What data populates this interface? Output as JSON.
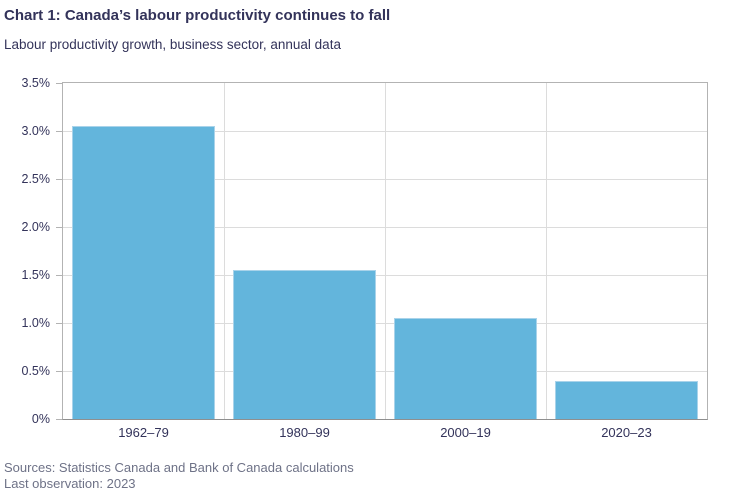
{
  "header": {
    "title": "Chart 1: Canada’s labour productivity continues to fall",
    "subtitle": "Labour productivity growth, business sector, annual data"
  },
  "chart_data": {
    "type": "bar",
    "categories": [
      "1962–79",
      "1980–99",
      "2000–19",
      "2020–23"
    ],
    "values": [
      3.05,
      1.55,
      1.05,
      0.4
    ],
    "title": "Chart 1: Canada’s labour productivity continues to fall",
    "subtitle": "Labour productivity growth, business sector, annual data",
    "xlabel": "",
    "ylabel": "",
    "ylim": [
      0,
      3.5
    ],
    "yticks": [
      {
        "value": 0,
        "label": "0%"
      },
      {
        "value": 0.5,
        "label": "0.5%"
      },
      {
        "value": 1.0,
        "label": "1.0%"
      },
      {
        "value": 1.5,
        "label": "1.5%"
      },
      {
        "value": 2.0,
        "label": "2.0%"
      },
      {
        "value": 2.5,
        "label": "2.5%"
      },
      {
        "value": 3.0,
        "label": "3.0%"
      },
      {
        "value": 3.5,
        "label": "3.5%"
      }
    ],
    "grid": true,
    "legend": false,
    "bar_color": "#63b5dc",
    "bar_border_color": "#a9d3ea"
  },
  "footer": {
    "sources": "Sources: Statistics Canada and Bank of Canada calculations",
    "last_observation": "Last observation: 2023"
  },
  "colors": {
    "text_primary": "#33335a",
    "text_secondary": "#6e7287",
    "gridline": "#dcdcdc",
    "axis_border": "#b3b3b3"
  }
}
